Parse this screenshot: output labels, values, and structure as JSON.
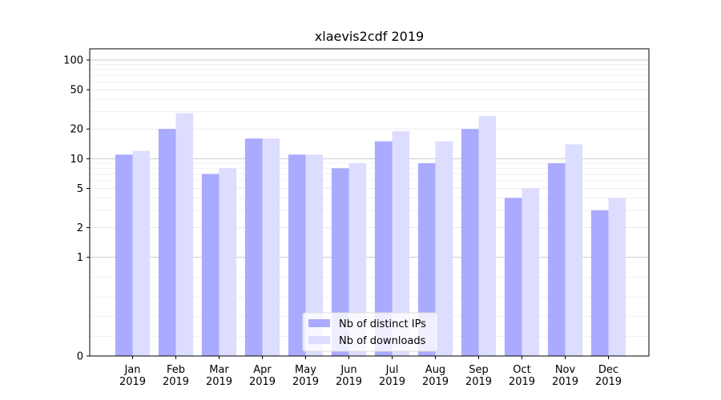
{
  "chart_data": {
    "type": "bar",
    "title": "xlaevis2cdf 2019",
    "xlabel": "",
    "ylabel": "",
    "yscale": "symlog",
    "ylim": [
      0,
      130
    ],
    "ytick_values": [
      0,
      1,
      2,
      5,
      10,
      20,
      50,
      100
    ],
    "ytick_labels": [
      "0",
      "1",
      "2",
      "5",
      "10",
      "20",
      "50",
      "100"
    ],
    "categories": [
      "Jan\n2019",
      "Feb\n2019",
      "Mar\n2019",
      "Apr\n2019",
      "May\n2019",
      "Jun\n2019",
      "Jul\n2019",
      "Aug\n2019",
      "Sep\n2019",
      "Oct\n2019",
      "Nov\n2019",
      "Dec\n2019"
    ],
    "category_lines": [
      [
        "Jan",
        "2019"
      ],
      [
        "Feb",
        "2019"
      ],
      [
        "Mar",
        "2019"
      ],
      [
        "Apr",
        "2019"
      ],
      [
        "May",
        "2019"
      ],
      [
        "Jun",
        "2019"
      ],
      [
        "Jul",
        "2019"
      ],
      [
        "Aug",
        "2019"
      ],
      [
        "Sep",
        "2019"
      ],
      [
        "Oct",
        "2019"
      ],
      [
        "Nov",
        "2019"
      ],
      [
        "Dec",
        "2019"
      ]
    ],
    "series": [
      {
        "name": "Nb of distinct IPs",
        "color": "#aaaaff",
        "values": [
          11,
          20,
          7,
          16,
          11,
          8,
          15,
          9,
          20,
          4,
          9,
          3
        ]
      },
      {
        "name": "Nb of downloads",
        "color": "#ddddff",
        "values": [
          12,
          29,
          8,
          16,
          11,
          9,
          19,
          15,
          27,
          5,
          14,
          4
        ]
      }
    ],
    "grid": true,
    "legend_position": "bottom-center"
  }
}
